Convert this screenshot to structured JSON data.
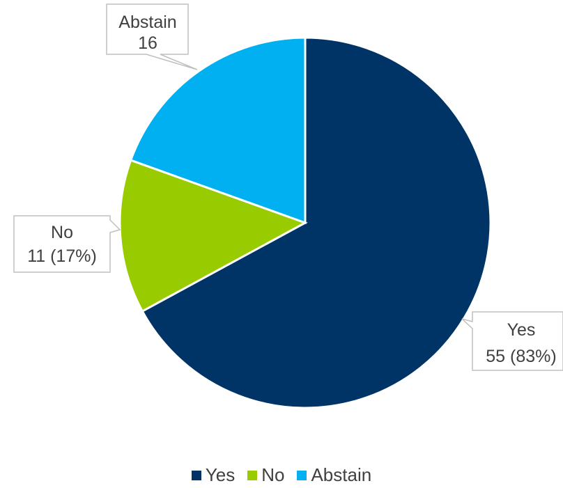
{
  "chart_data": {
    "type": "pie",
    "slices": [
      {
        "label": "Yes",
        "value": 55,
        "data_label_value": "55 (83%)",
        "color": "#003366"
      },
      {
        "label": "No",
        "value": 11,
        "data_label_value": "11 (17%)",
        "color": "#99CC00"
      },
      {
        "label": "Abstain",
        "value": 16,
        "data_label_value": "16",
        "color": "#00B0F0"
      }
    ],
    "legend": {
      "position": "bottom",
      "entries": [
        "Yes",
        "No",
        "Abstain"
      ]
    },
    "title": ""
  }
}
